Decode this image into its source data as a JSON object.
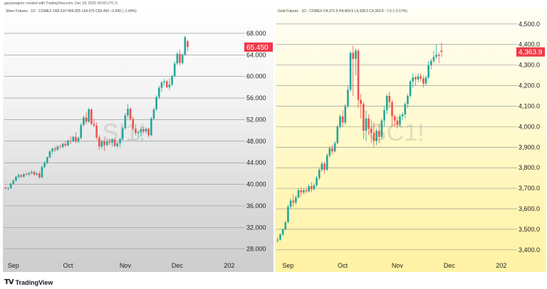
{
  "header": {
    "credit": "garyswagner created with TradingView.com, Dec 18, 2025 18:09 UTC-5"
  },
  "footer": {
    "brand": "TradingView"
  },
  "colors": {
    "up": "#26a69a",
    "down": "#ef5350",
    "grid": "#8a8a8a",
    "axis_text": "#222222",
    "price_tag_bg": "#f23645"
  },
  "chart_data": [
    {
      "type": "candlestick",
      "legend": "Silver Futures · 1D · COMEX  O66.510  H66.825  L64.675  C65.450  −0.990 (−1.49%)",
      "watermark": "SI1!",
      "last_price_label": "65.450",
      "last_price": 65.45,
      "ylim": [
        26.5,
        70.5
      ],
      "y_ticks": [
        28,
        32,
        36,
        40,
        44,
        48,
        52,
        56,
        60,
        64,
        68
      ],
      "y_tick_labels": [
        "28.000",
        "32.000",
        "36.000",
        "40.000",
        "44.000",
        "48.000",
        "52.000",
        "56.000",
        "60.000",
        "64.000",
        "68.000"
      ],
      "x_tick_labels": [
        {
          "label": "Sep",
          "index": 3
        },
        {
          "label": "Oct",
          "index": 24
        },
        {
          "label": "Nov",
          "index": 46
        },
        {
          "label": "Dec",
          "index": 66
        },
        {
          "label": "202",
          "index": 86
        }
      ],
      "slot_count": 92,
      "candles": [
        [
          39.4,
          39.6,
          39.1,
          39.2
        ],
        [
          39.2,
          39.5,
          38.9,
          39.3
        ],
        [
          39.3,
          40.3,
          39.1,
          40.1
        ],
        [
          40.1,
          40.9,
          39.9,
          40.7
        ],
        [
          40.7,
          41.6,
          40.5,
          41.4
        ],
        [
          41.4,
          42.0,
          41.0,
          41.7
        ],
        [
          41.7,
          41.9,
          41.2,
          41.4
        ],
        [
          41.4,
          42.1,
          41.2,
          41.9
        ],
        [
          41.9,
          42.2,
          41.6,
          41.8
        ],
        [
          41.8,
          42.3,
          41.5,
          42.1
        ],
        [
          42.1,
          42.6,
          41.8,
          42.3
        ],
        [
          42.3,
          42.5,
          41.6,
          41.8
        ],
        [
          41.8,
          42.3,
          41.6,
          42.0
        ],
        [
          42.0,
          42.4,
          41.0,
          41.3
        ],
        [
          41.3,
          43.5,
          41.1,
          43.2
        ],
        [
          43.2,
          44.3,
          43.0,
          44.0
        ],
        [
          44.0,
          45.2,
          43.7,
          45.0
        ],
        [
          45.0,
          46.3,
          44.8,
          46.1
        ],
        [
          46.1,
          46.8,
          45.6,
          46.6
        ],
        [
          46.6,
          47.0,
          46.0,
          46.4
        ],
        [
          46.4,
          47.3,
          46.2,
          47.0
        ],
        [
          47.0,
          47.4,
          46.6,
          46.9
        ],
        [
          46.9,
          47.7,
          46.7,
          47.5
        ],
        [
          47.5,
          48.0,
          46.9,
          47.2
        ],
        [
          47.2,
          48.4,
          47.0,
          48.1
        ],
        [
          48.1,
          48.9,
          47.5,
          48.0
        ],
        [
          48.0,
          49.0,
          47.8,
          48.8
        ],
        [
          48.8,
          49.6,
          47.6,
          47.9
        ],
        [
          47.9,
          48.9,
          47.6,
          48.6
        ],
        [
          48.6,
          51.3,
          48.3,
          51.0
        ],
        [
          51.0,
          52.8,
          50.7,
          52.4
        ],
        [
          52.4,
          53.4,
          51.2,
          51.6
        ],
        [
          51.6,
          54.2,
          51.4,
          53.9
        ],
        [
          53.9,
          54.1,
          50.9,
          51.2
        ],
        [
          51.2,
          52.1,
          50.6,
          50.9
        ],
        [
          50.9,
          51.5,
          48.3,
          48.7
        ],
        [
          48.7,
          49.1,
          46.4,
          47.0
        ],
        [
          47.0,
          48.3,
          46.6,
          48.0
        ],
        [
          48.0,
          48.5,
          46.2,
          47.3
        ],
        [
          47.3,
          48.2,
          47.0,
          47.9
        ],
        [
          47.9,
          48.4,
          47.3,
          47.7
        ],
        [
          47.7,
          48.6,
          47.0,
          48.3
        ],
        [
          48.3,
          48.5,
          46.9,
          47.1
        ],
        [
          47.1,
          47.9,
          46.7,
          47.6
        ],
        [
          47.6,
          48.6,
          46.9,
          48.4
        ],
        [
          48.4,
          50.7,
          48.1,
          50.4
        ],
        [
          50.4,
          53.2,
          50.1,
          52.8
        ],
        [
          52.8,
          54.9,
          52.3,
          54.0
        ],
        [
          54.0,
          54.3,
          51.8,
          52.1
        ],
        [
          52.1,
          52.6,
          50.0,
          50.3
        ],
        [
          50.3,
          51.1,
          49.1,
          49.5
        ],
        [
          49.5,
          50.0,
          48.4,
          49.7
        ],
        [
          49.7,
          50.6,
          48.8,
          50.2
        ],
        [
          50.2,
          50.7,
          49.5,
          49.8
        ],
        [
          49.8,
          50.6,
          49.4,
          50.3
        ],
        [
          50.3,
          50.5,
          48.7,
          49.1
        ],
        [
          49.1,
          52.5,
          48.9,
          52.2
        ],
        [
          52.2,
          54.3,
          51.9,
          53.9
        ],
        [
          53.9,
          56.5,
          53.6,
          56.2
        ],
        [
          56.2,
          58.3,
          55.8,
          57.9
        ],
        [
          57.9,
          59.2,
          57.1,
          58.9
        ],
        [
          58.9,
          59.5,
          58.3,
          59.1
        ],
        [
          59.1,
          59.4,
          57.8,
          58.0
        ],
        [
          58.0,
          59.6,
          57.5,
          58.5
        ],
        [
          58.5,
          60.4,
          58.2,
          60.1
        ],
        [
          60.1,
          62.8,
          59.9,
          62.4
        ],
        [
          62.4,
          64.6,
          62.1,
          64.2
        ],
        [
          64.2,
          65.0,
          62.0,
          62.5
        ],
        [
          62.5,
          64.3,
          62.2,
          64.0
        ],
        [
          64.0,
          67.6,
          63.8,
          67.3
        ],
        [
          66.51,
          66.825,
          64.675,
          65.45
        ]
      ]
    },
    {
      "type": "candlestick",
      "legend": "Gold Futures · 1D · COMEX  O4,371.5  H4,409.5  L4,338.0  C4,363.9  −7.5 (−0.17%)",
      "watermark": "GC1!",
      "last_price_label": "4,363.9",
      "last_price": 4363.9,
      "ylim": [
        3365,
        4520
      ],
      "y_ticks": [
        3400,
        3500,
        3600,
        3700,
        3800,
        3900,
        4000,
        4100,
        4200,
        4300,
        4400,
        4500
      ],
      "y_tick_labels": [
        "3,400.0",
        "3,500.0",
        "3,600.0",
        "3,700.0",
        "3,800.0",
        "3,900.0",
        "4,000.0",
        "4,100.0",
        "4,200.0",
        "4,300.0",
        "4,400.0",
        "4,500.0"
      ],
      "x_tick_labels": [
        {
          "label": "Sep",
          "index": 4
        },
        {
          "label": "Oct",
          "index": 25
        },
        {
          "label": "Nov",
          "index": 46
        },
        {
          "label": "Dec",
          "index": 66
        },
        {
          "label": "202",
          "index": 86
        }
      ],
      "slot_count": 92,
      "candles": [
        [
          3445,
          3460,
          3435,
          3450
        ],
        [
          3450,
          3480,
          3445,
          3475
        ],
        [
          3475,
          3505,
          3465,
          3500
        ],
        [
          3500,
          3540,
          3495,
          3535
        ],
        [
          3535,
          3620,
          3530,
          3610
        ],
        [
          3610,
          3650,
          3600,
          3640
        ],
        [
          3640,
          3670,
          3610,
          3630
        ],
        [
          3630,
          3665,
          3620,
          3655
        ],
        [
          3655,
          3700,
          3650,
          3690
        ],
        [
          3690,
          3705,
          3660,
          3680
        ],
        [
          3680,
          3700,
          3670,
          3690
        ],
        [
          3690,
          3700,
          3675,
          3685
        ],
        [
          3685,
          3720,
          3680,
          3710
        ],
        [
          3710,
          3730,
          3680,
          3695
        ],
        [
          3695,
          3725,
          3690,
          3715
        ],
        [
          3715,
          3760,
          3705,
          3750
        ],
        [
          3750,
          3800,
          3740,
          3790
        ],
        [
          3790,
          3830,
          3780,
          3820
        ],
        [
          3820,
          3830,
          3770,
          3790
        ],
        [
          3790,
          3870,
          3785,
          3860
        ],
        [
          3860,
          3905,
          3850,
          3895
        ],
        [
          3895,
          3910,
          3865,
          3880
        ],
        [
          3880,
          3930,
          3875,
          3920
        ],
        [
          3920,
          4010,
          3915,
          4000
        ],
        [
          4000,
          4060,
          3990,
          4050
        ],
        [
          4050,
          4080,
          4000,
          4020
        ],
        [
          4020,
          4110,
          4010,
          4100
        ],
        [
          4100,
          4200,
          4090,
          4180
        ],
        [
          4180,
          4370,
          4170,
          4360
        ],
        [
          4360,
          4395,
          4150,
          4330
        ],
        [
          4330,
          4380,
          4250,
          4370
        ],
        [
          4370,
          4380,
          4090,
          4130
        ],
        [
          4130,
          4160,
          4040,
          4110
        ],
        [
          4110,
          4120,
          3940,
          3980
        ],
        [
          3980,
          4080,
          3930,
          4040
        ],
        [
          4040,
          4060,
          3960,
          3990
        ],
        [
          3990,
          4030,
          3920,
          3970
        ],
        [
          3970,
          4020,
          3900,
          3930
        ],
        [
          3930,
          3990,
          3910,
          3980
        ],
        [
          3980,
          4010,
          3920,
          3950
        ],
        [
          3950,
          4040,
          3940,
          4030
        ],
        [
          4030,
          4100,
          4000,
          4080
        ],
        [
          4080,
          4160,
          4060,
          4150
        ],
        [
          4150,
          4170,
          4090,
          4120
        ],
        [
          4120,
          4130,
          4000,
          4050
        ],
        [
          4050,
          4060,
          4000,
          4030
        ],
        [
          4030,
          4050,
          3990,
          4010
        ],
        [
          4010,
          4060,
          4000,
          4050
        ],
        [
          4050,
          4070,
          4030,
          4060
        ],
        [
          4060,
          4120,
          4040,
          4110
        ],
        [
          4110,
          4160,
          4090,
          4150
        ],
        [
          4150,
          4230,
          4140,
          4220
        ],
        [
          4220,
          4260,
          4190,
          4240
        ],
        [
          4240,
          4250,
          4200,
          4230
        ],
        [
          4230,
          4260,
          4215,
          4245
        ],
        [
          4245,
          4260,
          4220,
          4235
        ],
        [
          4235,
          4250,
          4190,
          4210
        ],
        [
          4210,
          4250,
          4200,
          4240
        ],
        [
          4240,
          4320,
          4230,
          4300
        ],
        [
          4300,
          4330,
          4280,
          4320
        ],
        [
          4320,
          4370,
          4310,
          4340
        ],
        [
          4340,
          4400,
          4330,
          4350
        ],
        [
          4350,
          4360,
          4310,
          4345
        ],
        [
          4371.5,
          4409.5,
          4338,
          4363.9
        ]
      ]
    }
  ]
}
